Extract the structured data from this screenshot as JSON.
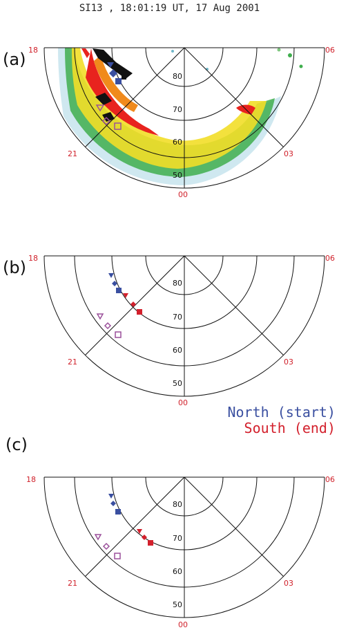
{
  "title": "SI13 , 18:01:19 UT, 17 Aug 2001",
  "panels": [
    {
      "letter": "(a)",
      "mlt": {
        "left": "18",
        "right": "06",
        "lower_left": "21",
        "lower_right": "03",
        "bottom": "00"
      },
      "latitudes": [
        "80",
        "70",
        "60",
        "50"
      ]
    },
    {
      "letter": "(b)",
      "mlt": {
        "left": "18",
        "right": "06",
        "lower_left": "21",
        "lower_right": "03",
        "bottom": "00"
      },
      "latitudes": [
        "80",
        "70",
        "60",
        "50"
      ]
    },
    {
      "letter": "(c)",
      "mlt": {
        "left": "18",
        "right": "06",
        "lower_left": "21",
        "lower_right": "03",
        "bottom": "00"
      },
      "latitudes": [
        "80",
        "70",
        "60",
        "50"
      ]
    }
  ],
  "legend": {
    "north": "North (start)",
    "south": "South (end)"
  },
  "colors": {
    "north": "#3a4fa0",
    "south": "#d3202c",
    "hollow": "#9a4f9a",
    "label": "#d0202a"
  }
}
